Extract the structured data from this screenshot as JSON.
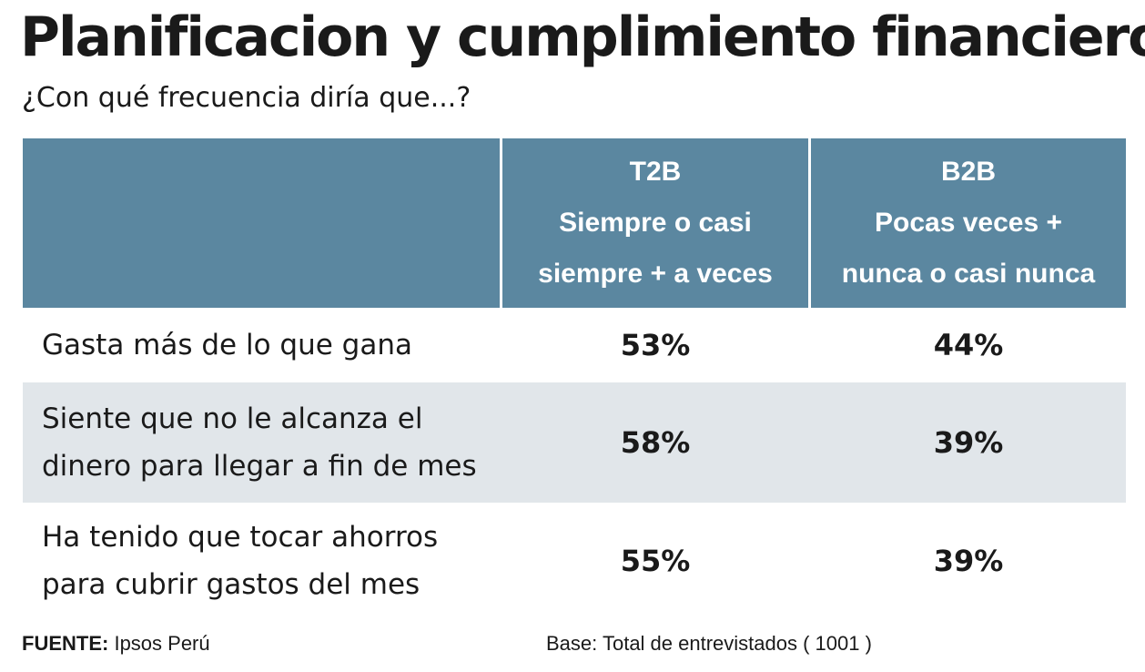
{
  "title": "Planificacion y cumplimiento financiero",
  "subtitle": "¿Con qué frecuencia diría que...?",
  "colors": {
    "header_bg": "#5b87a0",
    "shaded_row": "#e1e6ea",
    "text": "#1a1a1a"
  },
  "chart_data": {
    "type": "table",
    "columns": [
      {
        "code": "T2B",
        "lines": [
          "Siempre o casi",
          "siempre + a veces"
        ]
      },
      {
        "code": "B2B",
        "lines": [
          "Pocas veces +",
          "nunca o casi nunca"
        ]
      }
    ],
    "rows": [
      {
        "label_lines": [
          "Gasta más de lo que gana"
        ],
        "values": [
          "53%",
          "44%"
        ]
      },
      {
        "label_lines": [
          "Siente que no le alcanza el",
          "dinero para llegar a fin de mes"
        ],
        "values": [
          "58%",
          "39%"
        ]
      },
      {
        "label_lines": [
          "Ha tenido que tocar ahorros",
          "para cubrir gastos del mes"
        ],
        "values": [
          "55%",
          "39%"
        ]
      }
    ]
  },
  "footer": {
    "source_label": "FUENTE:",
    "source_value": "Ipsos Perú",
    "base": "Base: Total de entrevistados ( 1001 )"
  }
}
